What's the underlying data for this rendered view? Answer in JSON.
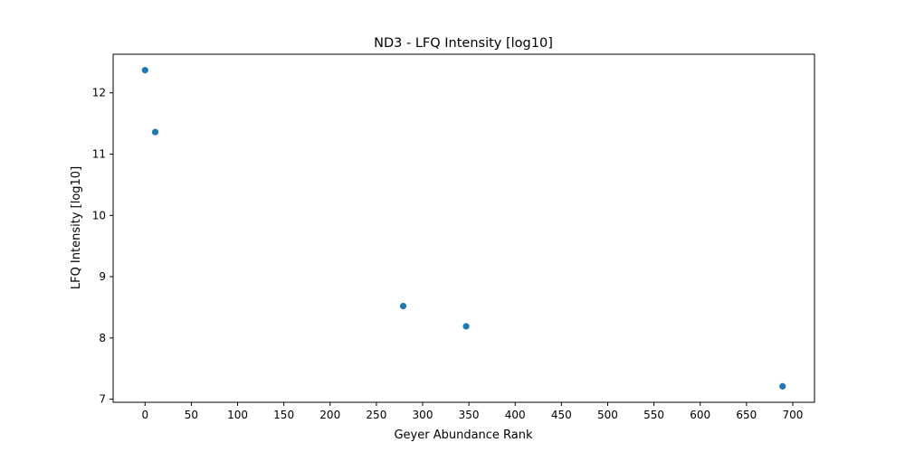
{
  "chart_data": {
    "type": "scatter",
    "title": "ND3 - LFQ Intensity [log10]",
    "xlabel": "Geyer Abundance Rank",
    "ylabel": "LFQ Intensity [log10]",
    "xlim": [
      -34.5,
      723.5
    ],
    "ylim": [
      6.95,
      12.63
    ],
    "xticks": [
      0,
      50,
      100,
      150,
      200,
      250,
      300,
      350,
      400,
      450,
      500,
      550,
      600,
      650,
      700
    ],
    "yticks": [
      7,
      8,
      9,
      10,
      11,
      12
    ],
    "grid": false,
    "point_color": "#1f77b4",
    "series": [
      {
        "x": [
          0,
          11,
          279,
          347,
          689
        ],
        "y": [
          12.37,
          11.36,
          8.52,
          8.19,
          7.21
        ]
      }
    ]
  }
}
